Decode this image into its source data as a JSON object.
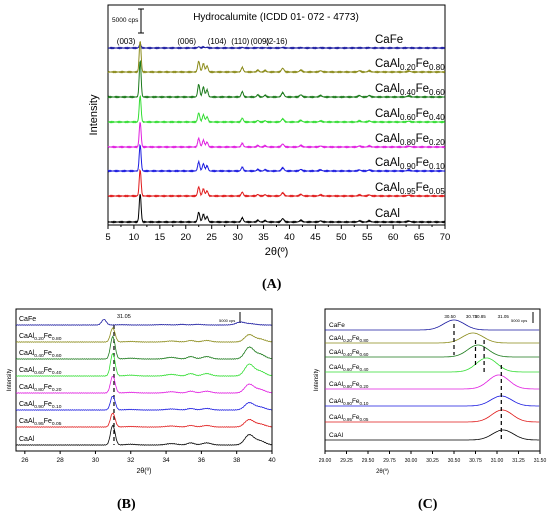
{
  "panels": {
    "a": {
      "label": "(A)"
    },
    "b": {
      "label": "(B)"
    },
    "c": {
      "label": "(C)"
    }
  },
  "chart_data": [
    {
      "id": "A",
      "type": "line",
      "title": "Hydrocalumite (ICDD 01- 072 - 4773)",
      "xlabel": "2θ(º)",
      "ylabel": "Intensity",
      "xlim": [
        5,
        70
      ],
      "xticks": [
        "5",
        "10",
        "15",
        "20",
        "25",
        "30",
        "35",
        "40",
        "45",
        "50",
        "55",
        "60",
        "65",
        "70"
      ],
      "scale_bar": "5000 cps",
      "reflections": [
        {
          "label": "(003)",
          "x": 11.2
        },
        {
          "label": "(006)",
          "x": 22.5
        },
        {
          "label": "(104)",
          "x": 24.1
        },
        {
          "label": "(110)",
          "x": 30.9
        },
        {
          "label": "(009)",
          "x": 33.9
        },
        {
          "label": "(2-16)",
          "x": 38.7
        }
      ],
      "series": [
        {
          "name": "CaFe",
          "sub1": "",
          "sub2": "",
          "color": "#1a1aa0",
          "peak_scale": 0.45
        },
        {
          "name": "CaAl",
          "sub1": "0.20",
          "name2": "Fe",
          "sub2": "0.80",
          "color": "#8b8b1a",
          "peak_scale": 1.1
        },
        {
          "name": "CaAl",
          "sub1": "0.40",
          "name2": "Fe",
          "sub2": "0.60",
          "color": "#1b7a1b",
          "peak_scale": 1.2
        },
        {
          "name": "CaAl",
          "sub1": "0.60",
          "name2": "Fe",
          "sub2": "0.40",
          "color": "#33dd33",
          "peak_scale": 1.0
        },
        {
          "name": "CaAl",
          "sub1": "0.80",
          "name2": "Fe",
          "sub2": "0.20",
          "color": "#e01ee0",
          "peak_scale": 0.95
        },
        {
          "name": "CaAl",
          "sub1": "0.90",
          "name2": "Fe",
          "sub2": "0.10",
          "color": "#1a1ae0",
          "peak_scale": 1.0
        },
        {
          "name": "CaAl",
          "sub1": "0.95",
          "name2": "Fe",
          "sub2": "0.05",
          "color": "#e01a1a",
          "peak_scale": 1.0
        },
        {
          "name": "CaAl",
          "sub1": "",
          "name2": "",
          "sub2": "",
          "color": "#000000",
          "peak_scale": 1.0
        }
      ]
    },
    {
      "id": "B",
      "type": "line",
      "xlabel": "2θ(º)",
      "ylabel": "Intensity",
      "xlim": [
        25.5,
        40
      ],
      "xticks": [
        "26",
        "28",
        "30",
        "32",
        "34",
        "36",
        "38",
        "40"
      ],
      "scale_bar": "5000 cps",
      "marker": {
        "label": "31.05",
        "x": 31.05
      },
      "series_labels": [
        {
          "name": "CaFe",
          "sub1": "",
          "name2": "",
          "sub2": ""
        },
        {
          "name": "CaAl",
          "sub1": "0.20",
          "name2": "Fe",
          "sub2": "0.80"
        },
        {
          "name": "CaAl",
          "sub1": "0.40",
          "name2": "Fe",
          "sub2": "0.60"
        },
        {
          "name": "CaAl",
          "sub1": "0.60",
          "name2": "Fe",
          "sub2": "0.40"
        },
        {
          "name": "CaAl",
          "sub1": "0.80",
          "name2": "Fe",
          "sub2": "0.20"
        },
        {
          "name": "CaAl",
          "sub1": "0.90",
          "name2": "Fe",
          "sub2": "0.10"
        },
        {
          "name": "CaAl",
          "sub1": "0.95",
          "name2": "Fe",
          "sub2": "0.05"
        },
        {
          "name": "CaAl",
          "sub1": "",
          "name2": "",
          "sub2": ""
        }
      ]
    },
    {
      "id": "C",
      "type": "line",
      "xlabel": "2θ(º)",
      "ylabel": "Intensity",
      "xlim": [
        29.0,
        31.5
      ],
      "xticks": [
        "29.00",
        "29.25",
        "29.50",
        "29.75",
        "30.00",
        "30.25",
        "30.50",
        "30.75",
        "31.00",
        "31.25",
        "31.50"
      ],
      "scale_bar": "5000 cps",
      "markers": [
        {
          "label": "30.50",
          "x": 30.5
        },
        {
          "label": "30.75",
          "x": 30.75
        },
        {
          "label": "30.85",
          "x": 30.85
        },
        {
          "label": "31.05",
          "x": 31.05
        }
      ],
      "peak_positions": [
        30.5,
        30.72,
        30.78,
        30.88,
        31.02,
        31.05,
        31.06,
        31.07
      ],
      "series_labels": [
        {
          "name": "CaFe",
          "sub1": "",
          "name2": "",
          "sub2": ""
        },
        {
          "name": "CaAl",
          "sub1": "0.20",
          "name2": "Fe",
          "sub2": "0.80"
        },
        {
          "name": "CaAl",
          "sub1": "0.40",
          "name2": "Fe",
          "sub2": "0.60"
        },
        {
          "name": "CaAl",
          "sub1": "0.60",
          "name2": "Fe",
          "sub2": "0.40"
        },
        {
          "name": "CaAl",
          "sub1": "0.80",
          "name2": "Fe",
          "sub2": "0.20"
        },
        {
          "name": "CaAl",
          "sub1": "0.90",
          "name2": "Fe",
          "sub2": "0.10"
        },
        {
          "name": "CaAl",
          "sub1": "0.95",
          "name2": "Fe",
          "sub2": "0.05"
        },
        {
          "name": "CaAl",
          "sub1": "",
          "name2": "",
          "sub2": ""
        }
      ]
    }
  ]
}
